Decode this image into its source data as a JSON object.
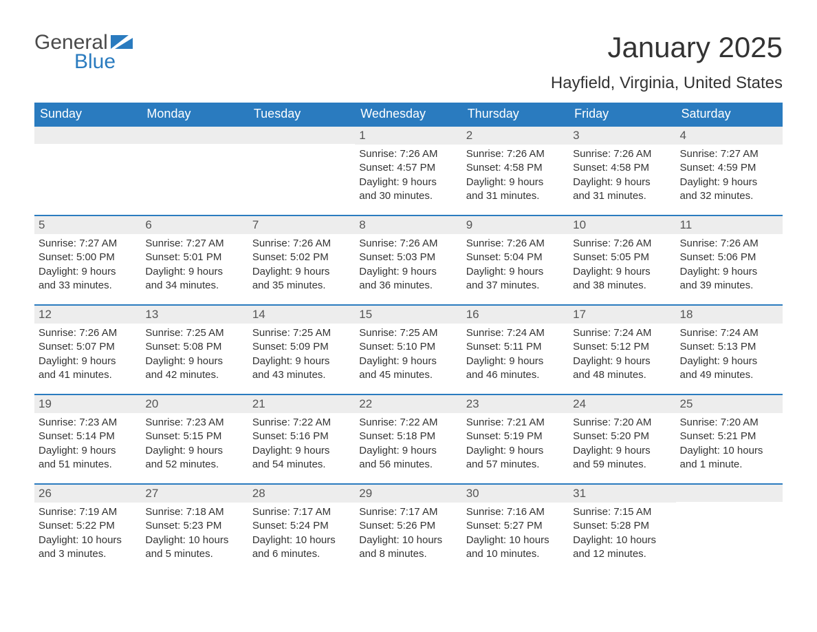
{
  "logo": {
    "word1": "General",
    "word2": "Blue",
    "flag_color": "#2a7bbf"
  },
  "title": "January 2025",
  "location": "Hayfield, Virginia, United States",
  "colors": {
    "header_bg": "#2a7bbf",
    "header_text": "#ffffff",
    "daynum_bg": "#ededed",
    "row_border": "#2a7bbf",
    "body_text": "#333333"
  },
  "day_headers": [
    "Sunday",
    "Monday",
    "Tuesday",
    "Wednesday",
    "Thursday",
    "Friday",
    "Saturday"
  ],
  "weeks": [
    [
      null,
      null,
      null,
      {
        "n": "1",
        "sunrise": "7:26 AM",
        "sunset": "4:57 PM",
        "dayl1": "Daylight: 9 hours",
        "dayl2": "and 30 minutes."
      },
      {
        "n": "2",
        "sunrise": "7:26 AM",
        "sunset": "4:58 PM",
        "dayl1": "Daylight: 9 hours",
        "dayl2": "and 31 minutes."
      },
      {
        "n": "3",
        "sunrise": "7:26 AM",
        "sunset": "4:58 PM",
        "dayl1": "Daylight: 9 hours",
        "dayl2": "and 31 minutes."
      },
      {
        "n": "4",
        "sunrise": "7:27 AM",
        "sunset": "4:59 PM",
        "dayl1": "Daylight: 9 hours",
        "dayl2": "and 32 minutes."
      }
    ],
    [
      {
        "n": "5",
        "sunrise": "7:27 AM",
        "sunset": "5:00 PM",
        "dayl1": "Daylight: 9 hours",
        "dayl2": "and 33 minutes."
      },
      {
        "n": "6",
        "sunrise": "7:27 AM",
        "sunset": "5:01 PM",
        "dayl1": "Daylight: 9 hours",
        "dayl2": "and 34 minutes."
      },
      {
        "n": "7",
        "sunrise": "7:26 AM",
        "sunset": "5:02 PM",
        "dayl1": "Daylight: 9 hours",
        "dayl2": "and 35 minutes."
      },
      {
        "n": "8",
        "sunrise": "7:26 AM",
        "sunset": "5:03 PM",
        "dayl1": "Daylight: 9 hours",
        "dayl2": "and 36 minutes."
      },
      {
        "n": "9",
        "sunrise": "7:26 AM",
        "sunset": "5:04 PM",
        "dayl1": "Daylight: 9 hours",
        "dayl2": "and 37 minutes."
      },
      {
        "n": "10",
        "sunrise": "7:26 AM",
        "sunset": "5:05 PM",
        "dayl1": "Daylight: 9 hours",
        "dayl2": "and 38 minutes."
      },
      {
        "n": "11",
        "sunrise": "7:26 AM",
        "sunset": "5:06 PM",
        "dayl1": "Daylight: 9 hours",
        "dayl2": "and 39 minutes."
      }
    ],
    [
      {
        "n": "12",
        "sunrise": "7:26 AM",
        "sunset": "5:07 PM",
        "dayl1": "Daylight: 9 hours",
        "dayl2": "and 41 minutes."
      },
      {
        "n": "13",
        "sunrise": "7:25 AM",
        "sunset": "5:08 PM",
        "dayl1": "Daylight: 9 hours",
        "dayl2": "and 42 minutes."
      },
      {
        "n": "14",
        "sunrise": "7:25 AM",
        "sunset": "5:09 PM",
        "dayl1": "Daylight: 9 hours",
        "dayl2": "and 43 minutes."
      },
      {
        "n": "15",
        "sunrise": "7:25 AM",
        "sunset": "5:10 PM",
        "dayl1": "Daylight: 9 hours",
        "dayl2": "and 45 minutes."
      },
      {
        "n": "16",
        "sunrise": "7:24 AM",
        "sunset": "5:11 PM",
        "dayl1": "Daylight: 9 hours",
        "dayl2": "and 46 minutes."
      },
      {
        "n": "17",
        "sunrise": "7:24 AM",
        "sunset": "5:12 PM",
        "dayl1": "Daylight: 9 hours",
        "dayl2": "and 48 minutes."
      },
      {
        "n": "18",
        "sunrise": "7:24 AM",
        "sunset": "5:13 PM",
        "dayl1": "Daylight: 9 hours",
        "dayl2": "and 49 minutes."
      }
    ],
    [
      {
        "n": "19",
        "sunrise": "7:23 AM",
        "sunset": "5:14 PM",
        "dayl1": "Daylight: 9 hours",
        "dayl2": "and 51 minutes."
      },
      {
        "n": "20",
        "sunrise": "7:23 AM",
        "sunset": "5:15 PM",
        "dayl1": "Daylight: 9 hours",
        "dayl2": "and 52 minutes."
      },
      {
        "n": "21",
        "sunrise": "7:22 AM",
        "sunset": "5:16 PM",
        "dayl1": "Daylight: 9 hours",
        "dayl2": "and 54 minutes."
      },
      {
        "n": "22",
        "sunrise": "7:22 AM",
        "sunset": "5:18 PM",
        "dayl1": "Daylight: 9 hours",
        "dayl2": "and 56 minutes."
      },
      {
        "n": "23",
        "sunrise": "7:21 AM",
        "sunset": "5:19 PM",
        "dayl1": "Daylight: 9 hours",
        "dayl2": "and 57 minutes."
      },
      {
        "n": "24",
        "sunrise": "7:20 AM",
        "sunset": "5:20 PM",
        "dayl1": "Daylight: 9 hours",
        "dayl2": "and 59 minutes."
      },
      {
        "n": "25",
        "sunrise": "7:20 AM",
        "sunset": "5:21 PM",
        "dayl1": "Daylight: 10 hours",
        "dayl2": "and 1 minute."
      }
    ],
    [
      {
        "n": "26",
        "sunrise": "7:19 AM",
        "sunset": "5:22 PM",
        "dayl1": "Daylight: 10 hours",
        "dayl2": "and 3 minutes."
      },
      {
        "n": "27",
        "sunrise": "7:18 AM",
        "sunset": "5:23 PM",
        "dayl1": "Daylight: 10 hours",
        "dayl2": "and 5 minutes."
      },
      {
        "n": "28",
        "sunrise": "7:17 AM",
        "sunset": "5:24 PM",
        "dayl1": "Daylight: 10 hours",
        "dayl2": "and 6 minutes."
      },
      {
        "n": "29",
        "sunrise": "7:17 AM",
        "sunset": "5:26 PM",
        "dayl1": "Daylight: 10 hours",
        "dayl2": "and 8 minutes."
      },
      {
        "n": "30",
        "sunrise": "7:16 AM",
        "sunset": "5:27 PM",
        "dayl1": "Daylight: 10 hours",
        "dayl2": "and 10 minutes."
      },
      {
        "n": "31",
        "sunrise": "7:15 AM",
        "sunset": "5:28 PM",
        "dayl1": "Daylight: 10 hours",
        "dayl2": "and 12 minutes."
      },
      null
    ]
  ],
  "labels": {
    "sunrise": "Sunrise: ",
    "sunset": "Sunset: "
  }
}
